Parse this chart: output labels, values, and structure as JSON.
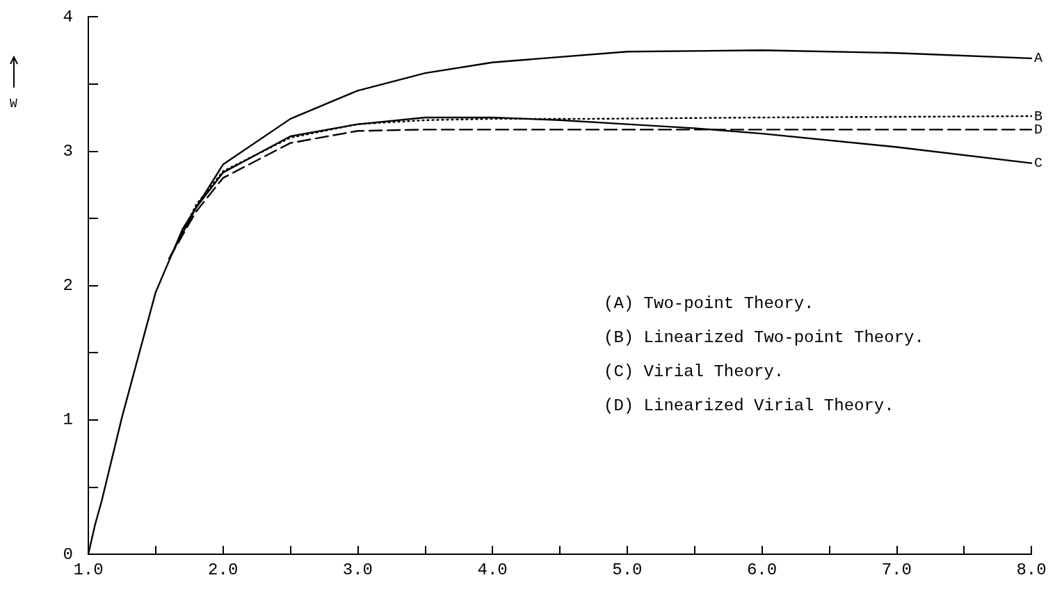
{
  "chart_data": {
    "type": "line",
    "ylabel": "W",
    "annotations": [
      "(A) Two-point Theory.",
      "(B) Linearized Two-point Theory.",
      "(C) Virial Theory.",
      "(D) Linearized Virial Theory."
    ],
    "xlim": [
      1,
      8
    ],
    "ylim": [
      0,
      4
    ],
    "xticks": [
      {
        "value": 1,
        "label": "1.0"
      },
      {
        "value": 1.5,
        "label": null
      },
      {
        "value": 2,
        "label": "2.0"
      },
      {
        "value": 2.5,
        "label": null
      },
      {
        "value": 3,
        "label": "3.0"
      },
      {
        "value": 3.5,
        "label": null
      },
      {
        "value": 4,
        "label": "4.0"
      },
      {
        "value": 4.5,
        "label": null
      },
      {
        "value": 5,
        "label": "5.0"
      },
      {
        "value": 5.5,
        "label": null
      },
      {
        "value": 6,
        "label": "6.0"
      },
      {
        "value": 6.5,
        "label": null
      },
      {
        "value": 7,
        "label": "7.0"
      },
      {
        "value": 7.5,
        "label": null
      },
      {
        "value": 8,
        "label": "8.0"
      }
    ],
    "yticks": [
      0,
      {
        "value": 0.5,
        "label": null
      },
      1,
      {
        "value": 1.5,
        "label": null
      },
      2,
      {
        "value": 2.5,
        "label": null
      },
      3,
      {
        "value": 3.5,
        "label": null
      },
      4
    ],
    "grid": false,
    "legend": false,
    "marker": "none",
    "series": [
      {
        "name": "A",
        "color": "#000000",
        "line_style": "solid",
        "x": [
          1.0,
          1.05,
          1.1,
          1.25,
          1.5,
          1.7,
          2.0,
          2.5,
          3.0,
          3.5,
          4.0,
          5.0,
          6.0,
          7.0,
          8.0
        ],
        "values": [
          0,
          0.22,
          0.4,
          1.02,
          1.95,
          2.42,
          2.9,
          3.24,
          3.45,
          3.58,
          3.66,
          3.74,
          3.75,
          3.73,
          3.69
        ]
      },
      {
        "name": "B",
        "color": "#000000",
        "line_style": "dotted",
        "x": [
          1.65,
          1.8,
          2.0,
          2.5,
          3.0,
          3.5,
          4.0,
          4.75,
          6.0,
          8.0
        ],
        "values": [
          2.3,
          2.6,
          2.85,
          3.1,
          3.2,
          3.23,
          3.24,
          3.24,
          3.25,
          3.26
        ]
      },
      {
        "name": "C",
        "color": "#000000",
        "line_style": "solid",
        "x": [
          1.6,
          1.8,
          2.0,
          2.5,
          3.0,
          3.5,
          4.0,
          4.5,
          5.0,
          5.5,
          6.0,
          7.0,
          8.0
        ],
        "values": [
          2.2,
          2.58,
          2.84,
          3.11,
          3.2,
          3.25,
          3.25,
          3.23,
          3.2,
          3.17,
          3.13,
          3.03,
          2.91
        ]
      },
      {
        "name": "D",
        "color": "#000000",
        "line_style": "dashed",
        "x": [
          1.6,
          1.8,
          2.0,
          2.5,
          3.0,
          3.5,
          5.0,
          8.0
        ],
        "values": [
          2.2,
          2.55,
          2.8,
          3.06,
          3.15,
          3.16,
          3.16,
          3.16
        ]
      }
    ]
  }
}
